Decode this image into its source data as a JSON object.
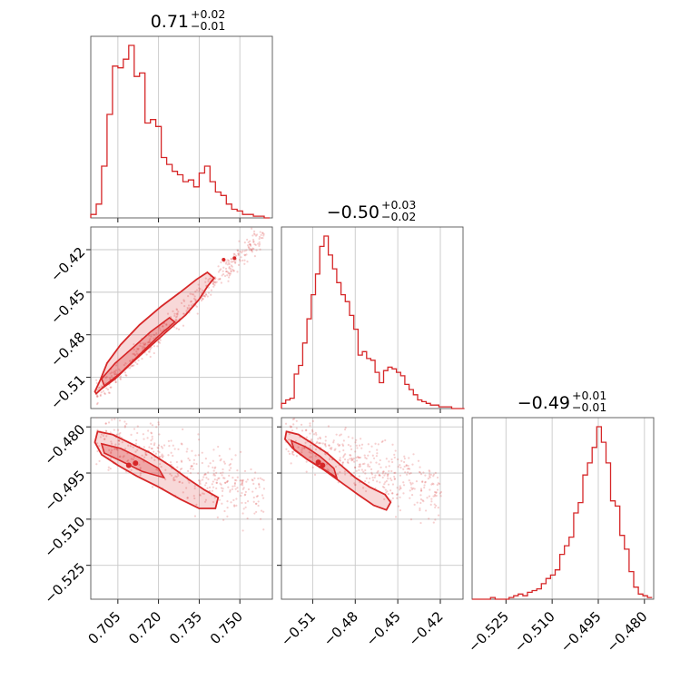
{
  "chart_data": {
    "type": "corner",
    "color": "#d62728",
    "parameters": [
      {
        "name": "",
        "title_median": "0.71",
        "title_plus": "+0.02",
        "title_minus": "−0.01",
        "range": [
          0.695,
          0.762
        ],
        "ticks": [
          0.705,
          0.72,
          0.735,
          0.75
        ],
        "tick_labels": [
          "0.705",
          "0.720",
          "0.735",
          "0.750"
        ]
      },
      {
        "name": "",
        "title_median": "−0.50",
        "title_plus": "+0.03",
        "title_minus": "−0.02",
        "range": [
          -0.532,
          -0.404
        ],
        "ticks": [
          -0.51,
          -0.48,
          -0.45,
          -0.42
        ],
        "tick_labels": [
          "−0.51",
          "−0.48",
          "−0.45",
          "−0.42"
        ]
      },
      {
        "name": "",
        "title_median": "−0.49",
        "title_plus": "+0.01",
        "title_minus": "−0.01",
        "range": [
          -0.536,
          -0.477
        ],
        "ticks": [
          -0.525,
          -0.51,
          -0.495,
          -0.48
        ],
        "tick_labels": [
          "−0.525",
          "−0.510",
          "−0.495",
          "−0.480"
        ]
      }
    ],
    "histograms": [
      {
        "param": 0,
        "bins": [
          0.695,
          0.697,
          0.699,
          0.701,
          0.703,
          0.705,
          0.707,
          0.709,
          0.711,
          0.713,
          0.715,
          0.717,
          0.719,
          0.721,
          0.723,
          0.725,
          0.727,
          0.729,
          0.731,
          0.733,
          0.735,
          0.737,
          0.739,
          0.741,
          0.743,
          0.745,
          0.747,
          0.749,
          0.751,
          0.753,
          0.755,
          0.757,
          0.759,
          0.761
        ],
        "counts": [
          2,
          8,
          30,
          60,
          88,
          87,
          92,
          100,
          82,
          84,
          55,
          57,
          53,
          35,
          31,
          27,
          25,
          21,
          22,
          18,
          26,
          30,
          21,
          15,
          13,
          8,
          5,
          4,
          2,
          2,
          1,
          1,
          0
        ]
      },
      {
        "param": 1,
        "bins": [
          -0.532,
          -0.529,
          -0.526,
          -0.523,
          -0.52,
          -0.517,
          -0.514,
          -0.511,
          -0.508,
          -0.505,
          -0.502,
          -0.499,
          -0.496,
          -0.493,
          -0.49,
          -0.487,
          -0.484,
          -0.481,
          -0.478,
          -0.475,
          -0.472,
          -0.469,
          -0.466,
          -0.463,
          -0.46,
          -0.457,
          -0.454,
          -0.451,
          -0.448,
          -0.445,
          -0.442,
          -0.439,
          -0.436,
          -0.433,
          -0.43,
          -0.427,
          -0.424,
          -0.421,
          -0.418,
          -0.415,
          -0.412,
          -0.409,
          -0.406,
          -0.403
        ],
        "counts": [
          3,
          5,
          6,
          20,
          25,
          38,
          52,
          66,
          78,
          94,
          100,
          89,
          81,
          73,
          66,
          62,
          54,
          46,
          31,
          33,
          29,
          28,
          21,
          15,
          22,
          24,
          23,
          21,
          19,
          14,
          11,
          8,
          5,
          4,
          3,
          2,
          2,
          1,
          1,
          1,
          0,
          0,
          0
        ]
      },
      {
        "param": 2,
        "bins": [
          -0.536,
          -0.5345,
          -0.533,
          -0.5315,
          -0.53,
          -0.5285,
          -0.527,
          -0.5255,
          -0.524,
          -0.5225,
          -0.521,
          -0.5195,
          -0.518,
          -0.5165,
          -0.515,
          -0.5135,
          -0.512,
          -0.5105,
          -0.509,
          -0.5075,
          -0.506,
          -0.5045,
          -0.503,
          -0.5015,
          -0.5,
          -0.4985,
          -0.497,
          -0.4955,
          -0.494,
          -0.4925,
          -0.491,
          -0.4895,
          -0.488,
          -0.4865,
          -0.485,
          -0.4835,
          -0.482,
          -0.4805,
          -0.479,
          -0.4775
        ],
        "counts": [
          0,
          0,
          0,
          0,
          1,
          0,
          0,
          0,
          1,
          2,
          3,
          2,
          4,
          5,
          6,
          9,
          12,
          14,
          17,
          26,
          31,
          36,
          50,
          56,
          72,
          79,
          88,
          100,
          91,
          79,
          57,
          54,
          37,
          29,
          16,
          7,
          3,
          2,
          1
        ]
      }
    ],
    "pairs": [
      {
        "x_param": 0,
        "y_param": 1,
        "relation": "positive linear",
        "x_sample_center": 0.715,
        "y_sample_center": -0.49
      },
      {
        "x_param": 0,
        "y_param": 2,
        "relation": "negative",
        "x_sample_center": 0.715,
        "y_sample_center": -0.495
      },
      {
        "x_param": 1,
        "y_param": 2,
        "relation": "negative",
        "x_sample_center": -0.49,
        "y_sample_center": -0.495
      }
    ],
    "grid": true
  }
}
